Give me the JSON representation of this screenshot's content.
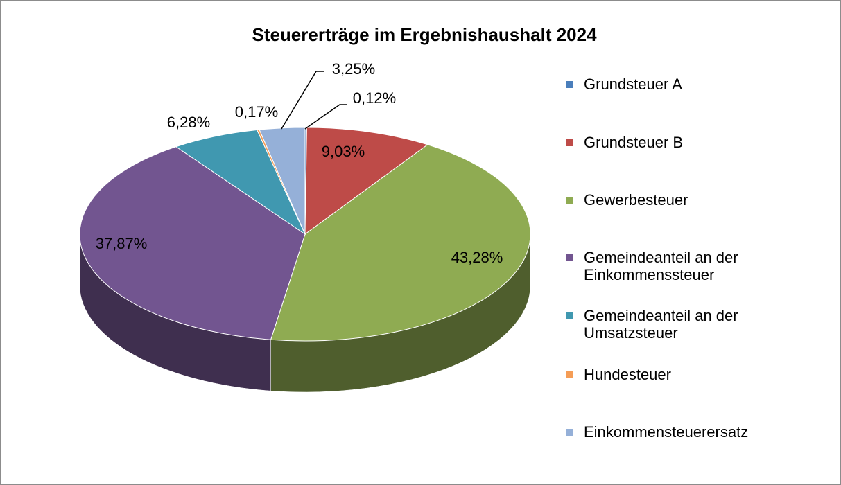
{
  "chart_data": {
    "type": "pie",
    "title": "Steuererträge im Ergebnishaushalt 2024",
    "categories": [
      "Grundsteuer A",
      "Grundsteuer B",
      "Gewerbesteuer",
      "Gemeindeanteil an der Einkommenssteuer",
      "Gemeindeanteil an der Umsatzsteuer",
      "Hundesteuer",
      "Einkommensteuerersatz"
    ],
    "values": [
      0.12,
      9.03,
      43.28,
      37.87,
      6.28,
      0.17,
      3.25
    ],
    "value_labels": [
      "0,12%",
      "9,03%",
      "43,28%",
      "37,87%",
      "6,28%",
      "0,17%",
      "3,25%"
    ],
    "colors": [
      "#4a7ebb",
      "#be4b48",
      "#8fab52",
      "#725590",
      "#4098b0",
      "#f59d56",
      "#95b0d8"
    ],
    "legend": "right"
  }
}
